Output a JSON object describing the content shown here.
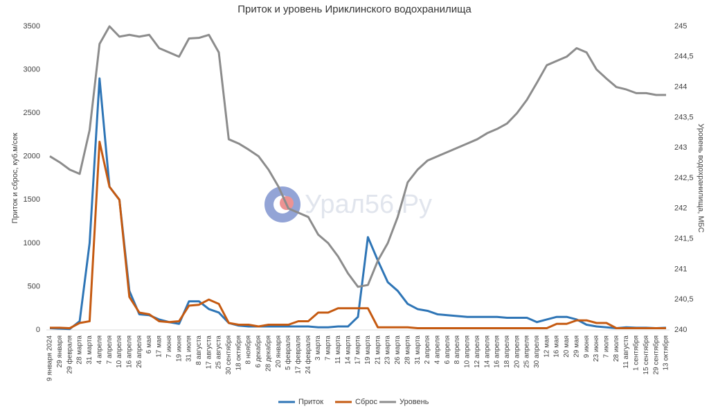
{
  "chart_data": {
    "type": "line",
    "title": "Приток и уровень Ириклинского водохранилища",
    "y_label": "Приток и сброс, куб.м/сек",
    "y2_label": "Уровень водохранилища, МБС",
    "watermark": "Урал56.Ру",
    "categories": [
      "9 января 2024",
      "29 января",
      "29 февраля",
      "28 марта",
      "31 марта",
      "4 апреля",
      "7 апреля",
      "10 апреля",
      "16 апреля",
      "26 апреля",
      "6 мая",
      "17 мая",
      "7 июня",
      "19 июня",
      "31 июля",
      "8 августа",
      "17 августа",
      "25 августа",
      "30 сентября",
      "18 октября",
      "8 ноября",
      "6 декабря",
      "28 декабря",
      "20 января",
      "5 февраля",
      "17 февраля",
      "24 февраля",
      "3 марта",
      "7 марта",
      "11 марта",
      "14 марта",
      "17 марта",
      "19 марта",
      "21 марта",
      "23 марта",
      "26 марта",
      "28 марта",
      "31 марта",
      "2 апреля",
      "4 апреля",
      "6 апреля",
      "8 апреля",
      "10 апреля",
      "12 апреля",
      "14 апреля",
      "16 апреля",
      "18 апреля",
      "20 апреля",
      "25 апреля",
      "30 апреля",
      "12 мая",
      "16 мая",
      "20 мая",
      "29 мая",
      "9 июня",
      "23 июня",
      "7 июля",
      "28 июля",
      "11 августа",
      "1 сентября",
      "15 сентября",
      "29 сентября",
      "13 октября"
    ],
    "series": [
      {
        "name": "Приток",
        "color": "#2e75b6",
        "values": [
          20,
          15,
          10,
          100,
          1000,
          2900,
          1650,
          1500,
          450,
          180,
          170,
          120,
          90,
          70,
          330,
          330,
          240,
          200,
          80,
          50,
          40,
          40,
          40,
          40,
          40,
          40,
          40,
          30,
          30,
          40,
          40,
          150,
          1070,
          800,
          550,
          450,
          300,
          240,
          220,
          180,
          170,
          160,
          150,
          150,
          150,
          150,
          140,
          140,
          140,
          90,
          120,
          150,
          150,
          120,
          60,
          40,
          30,
          20,
          30,
          25,
          25,
          20,
          25
        ]
      },
      {
        "name": "Сброс",
        "color": "#c55a11",
        "values": [
          25,
          25,
          20,
          80,
          100,
          2170,
          1650,
          1500,
          380,
          200,
          180,
          100,
          90,
          100,
          280,
          290,
          350,
          300,
          80,
          60,
          60,
          40,
          60,
          60,
          60,
          100,
          100,
          200,
          200,
          250,
          250,
          250,
          250,
          30,
          30,
          30,
          30,
          20,
          20,
          20,
          20,
          20,
          20,
          20,
          20,
          20,
          20,
          20,
          20,
          20,
          20,
          70,
          70,
          110,
          110,
          80,
          80,
          20,
          20,
          20,
          20,
          20,
          20
        ]
      },
      {
        "name": "Уровень",
        "color": "#8c8c8c",
        "axis": "y2",
        "values": [
          242.86,
          242.76,
          242.64,
          242.57,
          243.29,
          244.71,
          245.0,
          244.83,
          244.86,
          244.83,
          244.86,
          244.64,
          244.57,
          244.5,
          244.8,
          244.81,
          244.86,
          244.57,
          243.14,
          243.07,
          242.97,
          242.86,
          242.64,
          242.36,
          242.0,
          241.93,
          241.86,
          241.57,
          241.43,
          241.21,
          240.93,
          240.71,
          240.74,
          241.14,
          241.43,
          241.86,
          242.43,
          242.64,
          242.79,
          242.86,
          242.93,
          243.0,
          243.07,
          243.14,
          243.24,
          243.31,
          243.4,
          243.57,
          243.79,
          244.07,
          244.36,
          244.43,
          244.5,
          244.64,
          244.57,
          244.29,
          244.14,
          244.0,
          243.96,
          243.9,
          243.9,
          243.87,
          243.87
        ]
      }
    ],
    "ylim": [
      0,
      3500
    ],
    "yticks": [
      0,
      500,
      1000,
      1500,
      2000,
      2500,
      3000,
      3500
    ],
    "y2lim": [
      240,
      245
    ],
    "y2ticks": [
      240,
      {
        "value": 240.5,
        "label": "240,5"
      },
      241,
      {
        "value": 241.5,
        "label": "241,5"
      },
      242,
      {
        "value": 242.5,
        "label": "242,5"
      },
      243,
      {
        "value": 243.5,
        "label": "243,5"
      },
      244,
      {
        "value": 244.5,
        "label": "244,5"
      },
      245
    ],
    "grid": false,
    "legend": "bottom"
  }
}
